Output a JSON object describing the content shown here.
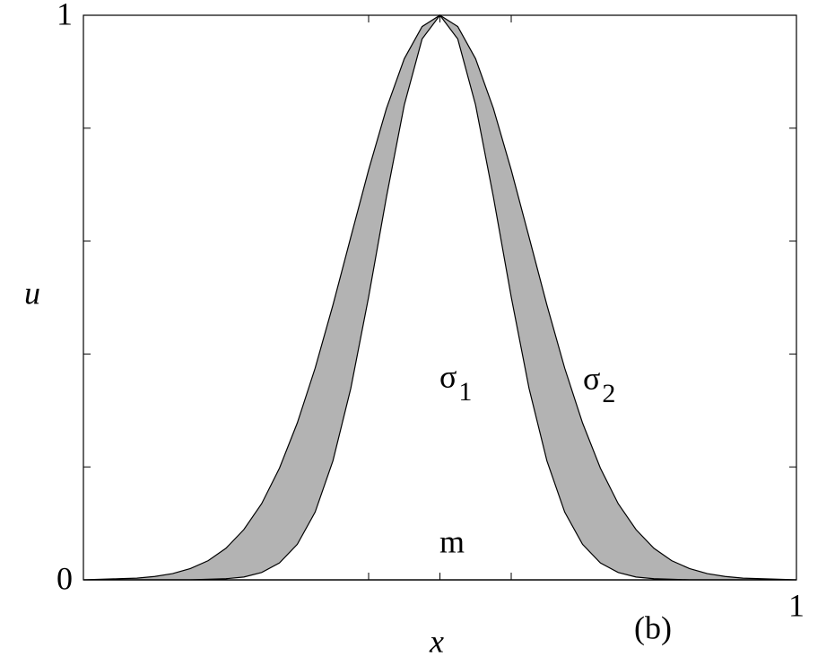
{
  "chart_data": {
    "type": "line",
    "xlabel": "x",
    "ylabel": "u",
    "xlim": [
      0,
      1
    ],
    "ylim": [
      0,
      1
    ],
    "xticks": [
      1
    ],
    "yticks": [
      0,
      1
    ],
    "xminor": [
      0.4,
      0.5,
      0.6
    ],
    "yminor": [
      0.2,
      0.4,
      0.6,
      0.8
    ],
    "x": [
      0,
      0.025,
      0.05,
      0.075,
      0.1,
      0.125,
      0.15,
      0.175,
      0.2,
      0.225,
      0.25,
      0.275,
      0.3,
      0.325,
      0.35,
      0.375,
      0.4,
      0.425,
      0.45,
      0.475,
      0.5,
      0.525,
      0.55,
      0.575,
      0.6,
      0.625,
      0.65,
      0.675,
      0.7,
      0.725,
      0.75,
      0.775,
      0.8,
      0.825,
      0.85,
      0.875,
      0.9,
      0.925,
      0.95,
      0.975,
      1
    ],
    "series": [
      {
        "color": "#b3b3b3",
        "values": [
          0,
          0.001,
          0.002,
          0.003,
          0.006,
          0.011,
          0.02,
          0.034,
          0.056,
          0.089,
          0.135,
          0.198,
          0.278,
          0.375,
          0.487,
          0.607,
          0.726,
          0.835,
          0.923,
          0.98,
          1,
          0.98,
          0.923,
          0.835,
          0.726,
          0.607,
          0.487,
          0.375,
          0.278,
          0.198,
          0.135,
          0.089,
          0.056,
          0.034,
          0.02,
          0.011,
          0.006,
          0.003,
          0.002,
          0.001,
          0
        ]
      },
      {
        "color": "#ffffff",
        "values": [
          0,
          0,
          0,
          0,
          0,
          0,
          0,
          0.001,
          0.002,
          0.005,
          0.013,
          0.03,
          0.063,
          0.12,
          0.211,
          0.339,
          0.501,
          0.678,
          0.841,
          0.958,
          1,
          0.958,
          0.841,
          0.678,
          0.501,
          0.339,
          0.211,
          0.12,
          0.063,
          0.03,
          0.013,
          0.005,
          0.002,
          0.001,
          0,
          0,
          0,
          0,
          0,
          0,
          0
        ]
      }
    ],
    "annotations": [
      {
        "text": "σ",
        "sub": "1"
      },
      {
        "text": "σ",
        "sub": "2"
      },
      {
        "text": "m"
      },
      {
        "text": "(b)"
      }
    ]
  }
}
